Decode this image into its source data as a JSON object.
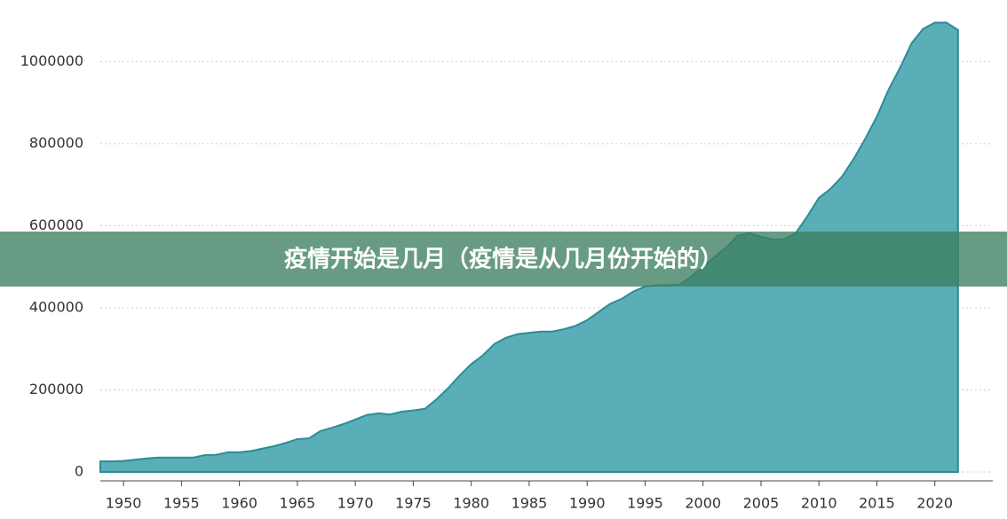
{
  "chart_data": {
    "type": "area",
    "title": "疫情开始是几月（疫情是从几月份开始的）",
    "x": [
      1948,
      1949,
      1950,
      1951,
      1952,
      1953,
      1954,
      1955,
      1956,
      1957,
      1958,
      1959,
      1960,
      1961,
      1962,
      1963,
      1964,
      1965,
      1966,
      1967,
      1968,
      1969,
      1970,
      1971,
      1972,
      1973,
      1974,
      1975,
      1976,
      1977,
      1978,
      1979,
      1980,
      1981,
      1982,
      1983,
      1984,
      1985,
      1986,
      1987,
      1988,
      1989,
      1990,
      1991,
      1992,
      1993,
      1994,
      1995,
      1996,
      1997,
      1998,
      1999,
      2000,
      2001,
      2002,
      2003,
      2004,
      2005,
      2006,
      2007,
      2008,
      2009,
      2010,
      2011,
      2012,
      2013,
      2014,
      2015,
      2016,
      2017,
      2018,
      2019,
      2020,
      2021,
      2022
    ],
    "values": [
      26000,
      26000,
      27000,
      30000,
      33000,
      35000,
      35000,
      35000,
      35000,
      41000,
      42000,
      48000,
      48000,
      51000,
      57000,
      63000,
      71000,
      80000,
      82000,
      100000,
      108000,
      117000,
      128000,
      139000,
      143000,
      140000,
      147000,
      150000,
      154000,
      177000,
      204000,
      235000,
      263000,
      284000,
      312000,
      327000,
      336000,
      339000,
      342000,
      342000,
      348000,
      356000,
      370000,
      390000,
      410000,
      422000,
      440000,
      452000,
      455000,
      455000,
      457000,
      476000,
      500000,
      524000,
      547000,
      576000,
      582000,
      573000,
      567000,
      567000,
      582000,
      623000,
      668000,
      690000,
      720000,
      763000,
      812000,
      866000,
      931000,
      985000,
      1045000,
      1080000,
      1095000,
      1095000,
      1077000
    ],
    "color": "#5aaeb8",
    "xlim": [
      1948,
      2025
    ],
    "xticks": [
      1950,
      1955,
      1960,
      1965,
      1970,
      1975,
      1980,
      1985,
      1990,
      1995,
      2000,
      2005,
      2010,
      2015,
      2020
    ],
    "ylim": [
      0,
      1150000
    ],
    "yticks": [
      0,
      200000,
      400000,
      600000,
      800000,
      1000000
    ],
    "grid": true
  }
}
